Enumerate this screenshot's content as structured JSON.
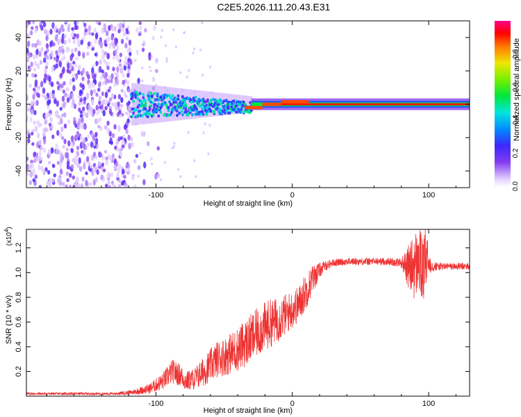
{
  "title": "C2E5.2026.111.20.43.E31",
  "chart_data": [
    {
      "type": "heatmap",
      "xlabel": "Height of straight line (km)",
      "ylabel": "Frequency (Hz)",
      "xlim": [
        -195,
        130
      ],
      "ylim": [
        -50,
        50
      ],
      "xticks": [
        -100,
        0,
        100
      ],
      "yticks": [
        -40,
        -20,
        0,
        20,
        40
      ],
      "description_series": [
        {
          "name": "noise region",
          "x_range": [
            -195,
            -118
          ],
          "freq_range": [
            -50,
            50
          ],
          "amplitude": 0.12
        },
        {
          "name": "spreading band",
          "x_range": [
            -118,
            -30
          ],
          "freq_center": 0,
          "freq_halfwidth": [
            8,
            3
          ],
          "amplitude": [
            0.3,
            0.45
          ]
        },
        {
          "name": "narrow line",
          "x_range": [
            -30,
            130
          ],
          "freq_center": 0,
          "freq_halfwidth": 1,
          "amplitude": 0.95
        }
      ],
      "colorbar": {
        "label": "Normalized spectral amplitude",
        "ticks": [
          0.0,
          0.2,
          0.4,
          0.6,
          0.8
        ],
        "range": [
          0,
          1
        ]
      }
    },
    {
      "type": "line",
      "xlabel": "Height of straight line (km)",
      "ylabel": "SNR (10 * v/v)",
      "scale_note": "(x10",
      "scale_exp": "4",
      "xlim": [
        -195,
        130
      ],
      "ylim": [
        0,
        1.35
      ],
      "xticks": [
        -100,
        0,
        100
      ],
      "yticks": [
        0.2,
        0.4,
        0.6,
        0.8,
        1.0,
        1.2
      ],
      "series": [
        {
          "name": "SNR",
          "color": "#ee3333",
          "x": [
            -195,
            -160,
            -130,
            -118,
            -105,
            -95,
            -88,
            -82,
            -78,
            -72,
            -65,
            -55,
            -48,
            -40,
            -32,
            -25,
            -18,
            -10,
            -5,
            0,
            5,
            10,
            15,
            20,
            25,
            30,
            40,
            50,
            60,
            70,
            80,
            86,
            90,
            93,
            96,
            98,
            100,
            104,
            110,
            120,
            130
          ],
          "values": [
            0.02,
            0.02,
            0.02,
            0.03,
            0.06,
            0.12,
            0.2,
            0.17,
            0.12,
            0.14,
            0.2,
            0.3,
            0.33,
            0.38,
            0.45,
            0.52,
            0.58,
            0.62,
            0.66,
            0.7,
            0.75,
            0.85,
            0.95,
            1.02,
            1.06,
            1.08,
            1.09,
            1.09,
            1.09,
            1.09,
            1.08,
            1.04,
            1.05,
            1.1,
            1.0,
            1.12,
            1.08,
            1.05,
            1.05,
            1.05,
            1.05
          ],
          "noise_amplitude": [
            0.01,
            0.01,
            0.01,
            0.02,
            0.04,
            0.07,
            0.1,
            0.09,
            0.08,
            0.09,
            0.12,
            0.15,
            0.16,
            0.18,
            0.2,
            0.2,
            0.2,
            0.18,
            0.17,
            0.15,
            0.15,
            0.15,
            0.12,
            0.06,
            0.04,
            0.03,
            0.03,
            0.03,
            0.03,
            0.03,
            0.04,
            0.2,
            0.28,
            0.3,
            0.25,
            0.28,
            0.1,
            0.04,
            0.03,
            0.03,
            0.03
          ]
        }
      ]
    }
  ]
}
